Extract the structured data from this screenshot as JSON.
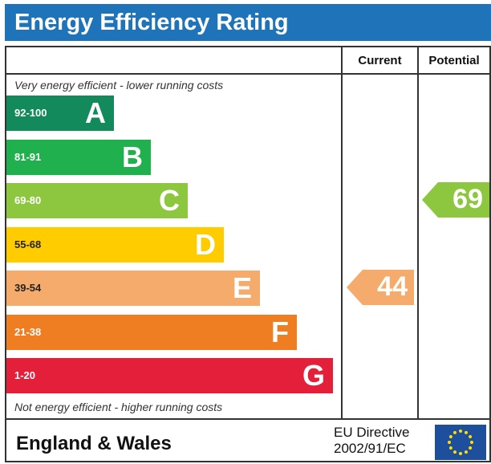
{
  "header": {
    "title": "Energy Efficiency Rating"
  },
  "columns": {
    "current": "Current",
    "potential": "Potential"
  },
  "notes": {
    "top": "Very energy efficient - lower running costs",
    "bottom": "Not energy efficient - higher running costs"
  },
  "chart_data": {
    "type": "bar",
    "bands": [
      {
        "letter": "A",
        "range": "92-100",
        "color": "#138a5b"
      },
      {
        "letter": "B",
        "range": "81-91",
        "color": "#20b04e"
      },
      {
        "letter": "C",
        "range": "69-80",
        "color": "#8dc63f"
      },
      {
        "letter": "D",
        "range": "55-68",
        "color": "#ffcc00"
      },
      {
        "letter": "E",
        "range": "39-54",
        "color": "#f5ab6b"
      },
      {
        "letter": "F",
        "range": "21-38",
        "color": "#ef7d22"
      },
      {
        "letter": "G",
        "range": "1-20",
        "color": "#e41f3a"
      }
    ],
    "ratings": {
      "current": {
        "value": 44,
        "band": "E",
        "color": "#f5ab6b"
      },
      "potential": {
        "value": 69,
        "band": "C",
        "color": "#8dc63f"
      }
    }
  },
  "footer": {
    "region": "England & Wales",
    "directive_line1": "EU Directive",
    "directive_line2": "2002/91/EC",
    "flag_icon": "eu-flag-icon"
  }
}
